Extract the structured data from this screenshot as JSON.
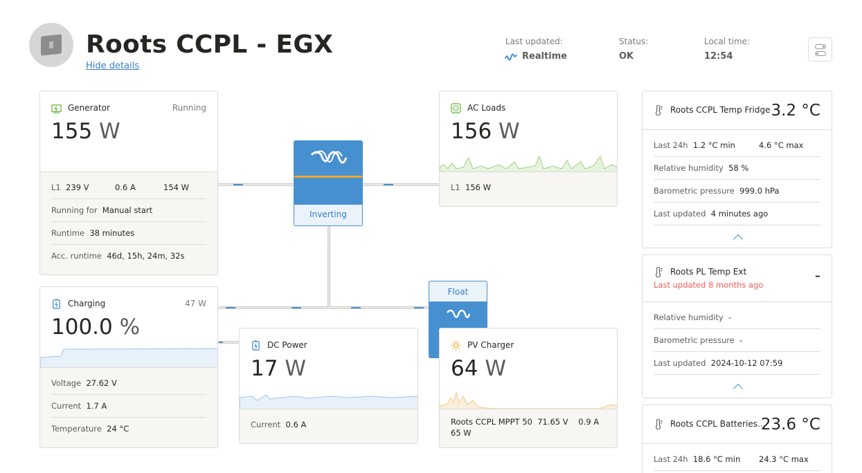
{
  "header": {
    "title": "Roots CCPL - EGX",
    "hide_details": "Hide details",
    "last_updated_label": "Last updated:",
    "last_updated_value": "Realtime",
    "status_label": "Status:",
    "status_value": "OK",
    "local_time_label": "Local time:",
    "local_time_value": "12:54"
  },
  "generator": {
    "title": "Generator",
    "status": "Running",
    "power_value": "155",
    "power_unit": "W",
    "l1_label": "L1",
    "l1_voltage": "239 V",
    "l1_current": "0.6 A",
    "l1_power": "154 W",
    "running_for_label": "Running for",
    "running_for_value": "Manual start",
    "runtime_label": "Runtime",
    "runtime_value": "38 minutes",
    "acc_runtime_label": "Acc. runtime",
    "acc_runtime_value": "46d, 15h, 24m, 32s"
  },
  "inverter": {
    "state": "Inverting"
  },
  "ac_loads": {
    "title": "AC Loads",
    "power_value": "156",
    "power_unit": "W",
    "l1_label": "L1",
    "l1_power": "156 W"
  },
  "battery": {
    "title": "Charging",
    "power": "47 W",
    "soc_value": "100.0",
    "soc_unit": "%",
    "voltage_label": "Voltage",
    "voltage_value": "27.62 V",
    "current_label": "Current",
    "current_value": "1.7 A",
    "temperature_label": "Temperature",
    "temperature_value": "24 °C"
  },
  "dc_power": {
    "title": "DC Power",
    "power_value": "17",
    "power_unit": "W",
    "current_label": "Current",
    "current_value": "0.6 A"
  },
  "charger": {
    "state": "Float"
  },
  "pv_charger": {
    "title": "PV Charger",
    "power_value": "64",
    "power_unit": "W",
    "device_name": "Roots CCPL MPPT 50",
    "device_voltage": "71.65 V",
    "device_current": "0.9 A",
    "device_power": "65 W"
  },
  "temp_fridge": {
    "title": "Roots CCPL Temp Fridge",
    "value": "3.2 °C",
    "last24_label": "Last 24h",
    "min_value": "1.2 °C min",
    "max_value": "4.6 °C max",
    "humidity_label": "Relative humidity",
    "humidity_value": "58 %",
    "pressure_label": "Barometric pressure",
    "pressure_value": "999.0 hPa",
    "updated_label": "Last updated",
    "updated_value": "4 minutes ago"
  },
  "temp_ext": {
    "title": "Roots PL Temp Ext",
    "subtitle": "Last updated 8 months ago",
    "value": "-",
    "humidity_label": "Relative humidity",
    "humidity_value": "-",
    "pressure_label": "Barometric pressure",
    "pressure_value": "-",
    "updated_label": "Last updated",
    "updated_value": "2024-10-12 07:59"
  },
  "temp_batteries": {
    "title": "Roots CCPL Batteries...",
    "value": "23.6 °C",
    "last24_label": "Last 24h",
    "min_value": "18.6 °C min",
    "max_value": "24.3 °C max"
  },
  "colors": {
    "accent_blue": "#4790d0",
    "link_blue": "#387dc5",
    "inverter_orange": "#f0a630",
    "ac_green": "#72b84c",
    "pv_orange": "#f3a63b",
    "warning_red": "#f35c58"
  },
  "icons": {
    "site": "device-icon",
    "realtime": "realtime-wave-icon",
    "settings": "toggles-icon",
    "generator": "generator-icon",
    "ac_loads": "socket-icon",
    "battery": "battery-icon",
    "dc": "dc-battery-icon",
    "pv": "sun-icon",
    "thermometer": "thermometer-icon",
    "victron": "victron-logo-icon"
  }
}
